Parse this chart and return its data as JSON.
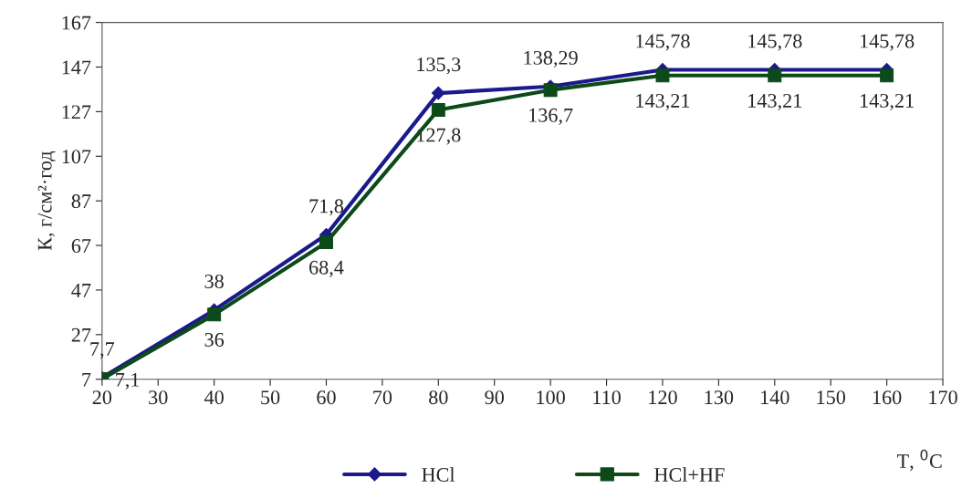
{
  "chart_data": {
    "type": "line",
    "xlabel": "T, $^{0}$C",
    "ylabel": "К, г/см²·год",
    "x": [
      20,
      40,
      60,
      80,
      100,
      120,
      140,
      160
    ],
    "series": [
      {
        "name": "HCl",
        "color": "#1a1a8c",
        "marker": "diamond",
        "values": [
          7.7,
          38,
          71.8,
          135.3,
          138.29,
          145.78,
          145.78,
          145.78
        ],
        "value_labels": [
          "7,7",
          "38",
          "71,8",
          "135,3",
          "138,29",
          "145,78",
          "145,78",
          "145,78"
        ]
      },
      {
        "name": "HCl+HF",
        "color": "#0d4a1a",
        "marker": "square",
        "values": [
          7.1,
          36,
          68.4,
          127.8,
          136.7,
          143.21,
          143.21,
          143.21
        ],
        "value_labels": [
          "7,1",
          "36",
          "68,4",
          "127,8",
          "136,7",
          "143,21",
          "143,21",
          "143,21"
        ]
      }
    ],
    "xlim": [
      20,
      170
    ],
    "xticks": [
      20,
      30,
      40,
      50,
      60,
      70,
      80,
      90,
      100,
      110,
      120,
      130,
      140,
      150,
      160,
      170
    ],
    "ylim": [
      7,
      167
    ],
    "yticks": [
      7,
      27,
      47,
      67,
      87,
      107,
      127,
      147,
      167
    ],
    "grid": false,
    "legend": "bottom",
    "line_style": "solid"
  }
}
